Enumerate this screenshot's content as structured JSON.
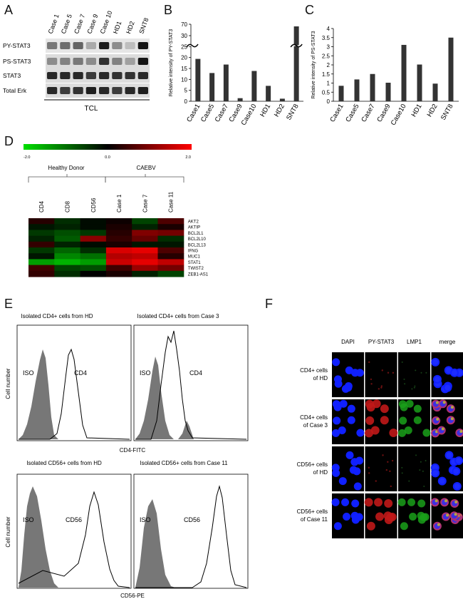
{
  "panel_letters": [
    "A",
    "B",
    "C",
    "D",
    "E",
    "F"
  ],
  "panelA": {
    "lanes": [
      "Case 1",
      "Case 5",
      "Case 7",
      "Case 9",
      "Case 10",
      "HD1",
      "HD2",
      "SNT8"
    ],
    "rows": [
      "PY-STAT3",
      "PS-STAT3",
      "STAT3",
      "Total Erk"
    ],
    "footer": "TCL"
  },
  "chart_data": [
    {
      "type": "bar",
      "ylabel": "Relative intensity of PY-STAT3",
      "categories": [
        "Case1",
        "Case5",
        "Case7",
        "Case9",
        "Case10",
        "HD1",
        "HD2",
        "SNT8"
      ],
      "values": [
        16.5,
        11,
        14.3,
        1.2,
        11.8,
        6,
        1,
        70
      ],
      "ylim": [
        0,
        30
      ],
      "yticks": [
        "0",
        "5",
        "10",
        "15",
        "20",
        "25",
        "30",
        "70"
      ],
      "axis_break": true
    },
    {
      "type": "bar",
      "ylabel": "Relative intensity of PS-STAT3",
      "categories": [
        "Case1",
        "Case5",
        "Case7",
        "Case9",
        "Case10",
        "HD1",
        "HD2",
        "SNT8"
      ],
      "values": [
        0.85,
        1.2,
        1.5,
        1.02,
        3.1,
        2.02,
        0.97,
        3.5
      ],
      "ylim": [
        0,
        4
      ],
      "yticks": [
        "0",
        "0.5",
        "1",
        "1.5",
        "2",
        "2.5",
        "3",
        "3.5",
        "4"
      ]
    }
  ],
  "panelD": {
    "scale": [
      "-2.0",
      "0.0",
      "2.0"
    ],
    "groups": [
      "Healthy Donor",
      "CAEBV"
    ],
    "columns": [
      "CD4",
      "CD8",
      "CD56",
      "Case 1",
      "Case 7",
      "Case 11"
    ],
    "genes": [
      "AKT2",
      "AKTIP",
      "BCL2L1",
      "BCL2L10",
      "BCL2L13",
      "IFNG",
      "MUC1",
      "STAT1",
      "TWIST2",
      "ZEB1-AS1"
    ],
    "colors": {
      "green": "#00e000",
      "black": "#000000",
      "red": "#ff0000"
    },
    "values": [
      [
        0.3,
        -0.4,
        -0.1,
        0.1,
        -0.6,
        0.6
      ],
      [
        -0.2,
        -0.3,
        -0.1,
        0.2,
        -0.3,
        0.2
      ],
      [
        -0.5,
        -0.7,
        -0.5,
        0.3,
        1.0,
        0.9
      ],
      [
        -0.3,
        -0.8,
        1.1,
        0.4,
        0.8,
        -0.4
      ],
      [
        0.4,
        -0.3,
        -0.1,
        0.2,
        -0.2,
        -0.2
      ],
      [
        -0.5,
        -0.9,
        -0.4,
        1.7,
        1.8,
        0.6
      ],
      [
        -0.2,
        -1.2,
        -1.0,
        1.4,
        1.5,
        0.3
      ],
      [
        -1.4,
        -1.6,
        -1.4,
        1.6,
        1.8,
        1.5
      ],
      [
        0.5,
        -0.6,
        -0.7,
        0.5,
        1.2,
        0.9
      ],
      [
        0.4,
        -0.4,
        0.0,
        0.2,
        -0.3,
        -0.6
      ]
    ]
  },
  "panelE": {
    "titles": [
      "Isolated CD4+ cells from HD",
      "Isolated CD4+ cells from Case 3",
      "Isolated CD56+ cells from HD",
      "Isolated CD56+ cells from Case 11"
    ],
    "iso_label": "ISO",
    "marker_labels": [
      "CD4",
      "CD4",
      "CD56",
      "CD56"
    ],
    "ylabel": "Cell number",
    "xlabels": [
      "CD4-FITC",
      "CD56-PE"
    ]
  },
  "panelF": {
    "columns": [
      "DAPI",
      "PY-STAT3",
      "LMP1",
      "merge"
    ],
    "rows": [
      "CD4+ cells\nof HD",
      "CD4+ cells\nof Case 3",
      "CD56+ cells\nof HD",
      "CD56+ cells\nof Case 11"
    ]
  }
}
